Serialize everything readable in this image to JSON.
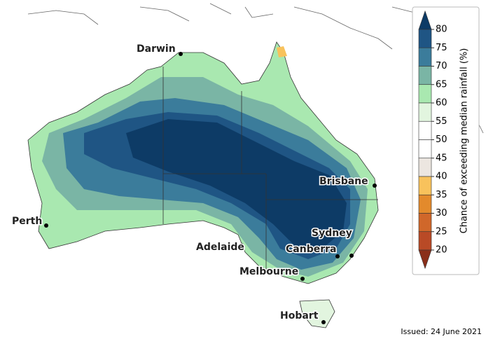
{
  "cities": [
    "Darwin",
    "Perth",
    "Adelaide",
    "Melbourne",
    "Hobart",
    "Sydney",
    "Canberra",
    "Brisbane"
  ],
  "legend": {
    "title": "Chance of exceeding median rainfall (%)",
    "ticks": [
      80,
      75,
      70,
      65,
      60,
      55,
      50,
      45,
      40,
      35,
      30,
      25,
      20
    ],
    "colors": [
      "#0d3b66",
      "#1f5584",
      "#3b7c9b",
      "#7ab5a5",
      "#a9e8b0",
      "#e2f5df",
      "#ffffff",
      "#ffffff",
      "#ece6e0",
      "#f8c25c",
      "#e38a2c",
      "#d0672a",
      "#b94a26",
      "#8a2f1a"
    ]
  },
  "issued": "Issued: 24 June 2021"
}
